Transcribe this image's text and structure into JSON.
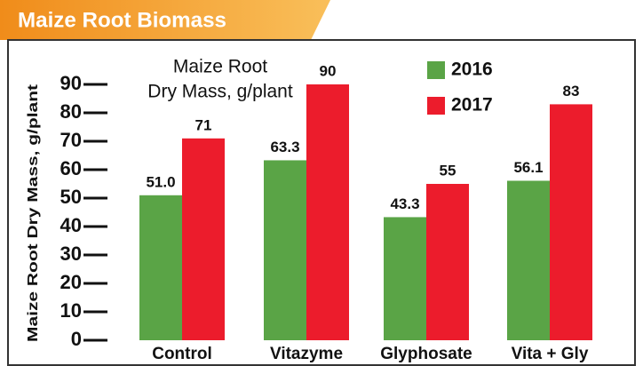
{
  "chart_data": {
    "type": "bar",
    "title": "Maize Root Biomass",
    "ylabel": "Maize Root Dry Mass, g/plant",
    "annotation": [
      "Maize Root",
      "Dry Mass, g/plant"
    ],
    "categories": [
      "Control",
      "Vitazyme",
      "Glyphosate",
      "Vita + Gly"
    ],
    "series": [
      {
        "name": "2016",
        "color": "#5aa446",
        "values": [
          51.0,
          63.3,
          43.3,
          56.1
        ],
        "value_labels": [
          "51.0",
          "63.3",
          "43.3",
          "56.1"
        ]
      },
      {
        "name": "2017",
        "color": "#ec1c2c",
        "values": [
          71,
          90,
          55,
          83
        ]
      }
    ],
    "ylim": [
      0,
      90
    ],
    "yticks": [
      0,
      10,
      20,
      30,
      40,
      50,
      60,
      70,
      80,
      90
    ],
    "legend": "top-right"
  }
}
